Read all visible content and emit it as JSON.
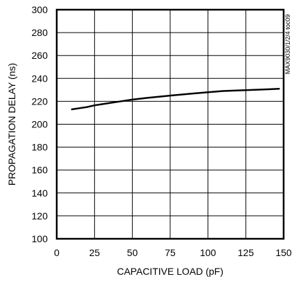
{
  "chart_data": {
    "type": "line",
    "title": "",
    "xlabel": "CAPACITIVE LOAD (pF)",
    "ylabel": "PROPAGATION DELAY (ns)",
    "xlim": [
      0,
      150
    ],
    "ylim": [
      100,
      300
    ],
    "xticks": [
      0,
      25,
      50,
      75,
      100,
      125,
      150
    ],
    "yticks": [
      100,
      120,
      140,
      160,
      180,
      200,
      220,
      240,
      260,
      280,
      300
    ],
    "grid": true,
    "legend": "none",
    "annotation": "MAX9030/1/2/4 toc09",
    "series": [
      {
        "x": [
          10,
          15,
          20,
          25,
          30,
          40,
          50,
          60,
          75,
          90,
          100,
          110,
          125,
          140,
          147
        ],
        "y": [
          213,
          214,
          215,
          216.5,
          217.5,
          219.5,
          221.5,
          223,
          225,
          226.8,
          228,
          229,
          229.8,
          230.5,
          231
        ]
      }
    ]
  }
}
